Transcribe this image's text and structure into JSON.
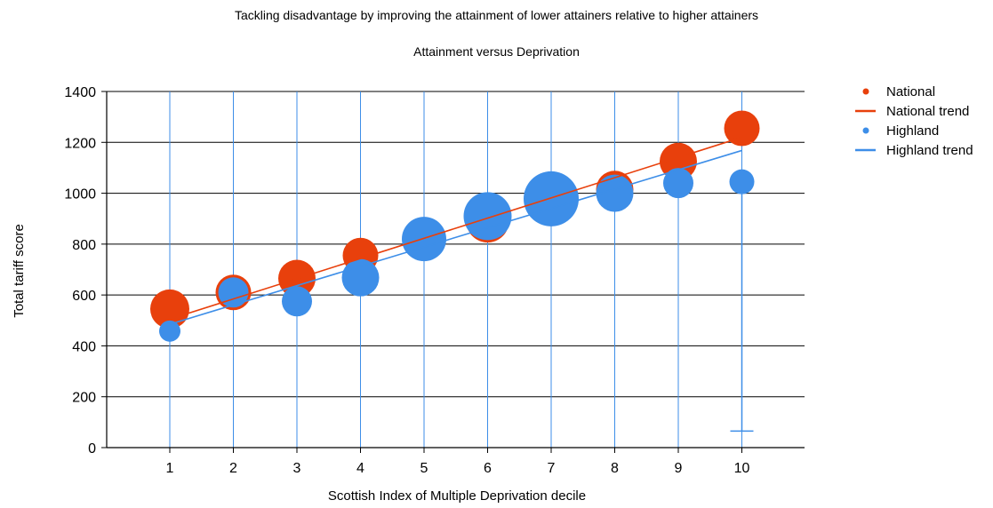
{
  "chart_data": {
    "type": "scatter",
    "title": "Tackling disadvantage by improving the attainment of lower attainers relative to higher attainers",
    "subtitle": "Attainment versus Deprivation",
    "xlabel": "Scottish Index of Multiple Deprivation decile",
    "ylabel": "Total tariff score",
    "xlim": [
      0,
      11
    ],
    "ylim": [
      0,
      1400
    ],
    "x_ticks": [
      "1",
      "2",
      "3",
      "4",
      "5",
      "6",
      "7",
      "8",
      "9",
      "10"
    ],
    "y_ticks": [
      "0",
      "200",
      "400",
      "600",
      "800",
      "1000",
      "1200",
      "1400"
    ],
    "grid": true,
    "legend_position": "right",
    "series": [
      {
        "name": "National",
        "color": "#e8400c",
        "x": [
          1,
          2,
          3,
          4,
          5,
          6,
          7,
          8,
          9,
          10
        ],
        "y": [
          545,
          610,
          665,
          755,
          820,
          890,
          965,
          1015,
          1125,
          1255
        ],
        "size": [
          22,
          20,
          21,
          20,
          22,
          24,
          27,
          21,
          21,
          20
        ]
      },
      {
        "name": "Highland",
        "color": "#3d8ee8",
        "x": [
          1,
          2,
          3,
          4,
          5,
          6,
          7,
          8,
          9,
          10
        ],
        "y": [
          458,
          610,
          575,
          668,
          820,
          910,
          978,
          1000,
          1040,
          1045
        ],
        "size": [
          12,
          17,
          17,
          21,
          25,
          27,
          31,
          21,
          17,
          14
        ],
        "error_low": [
          null,
          null,
          null,
          null,
          null,
          null,
          null,
          null,
          null,
          65
        ]
      },
      {
        "name": "National trend",
        "color": "#e8400c",
        "type": "line",
        "x": [
          1,
          10
        ],
        "y": [
          505,
          1220
        ]
      },
      {
        "name": "Highland trend",
        "color": "#3d8ee8",
        "type": "line",
        "x": [
          1,
          10
        ],
        "y": [
          485,
          1168
        ]
      }
    ]
  }
}
